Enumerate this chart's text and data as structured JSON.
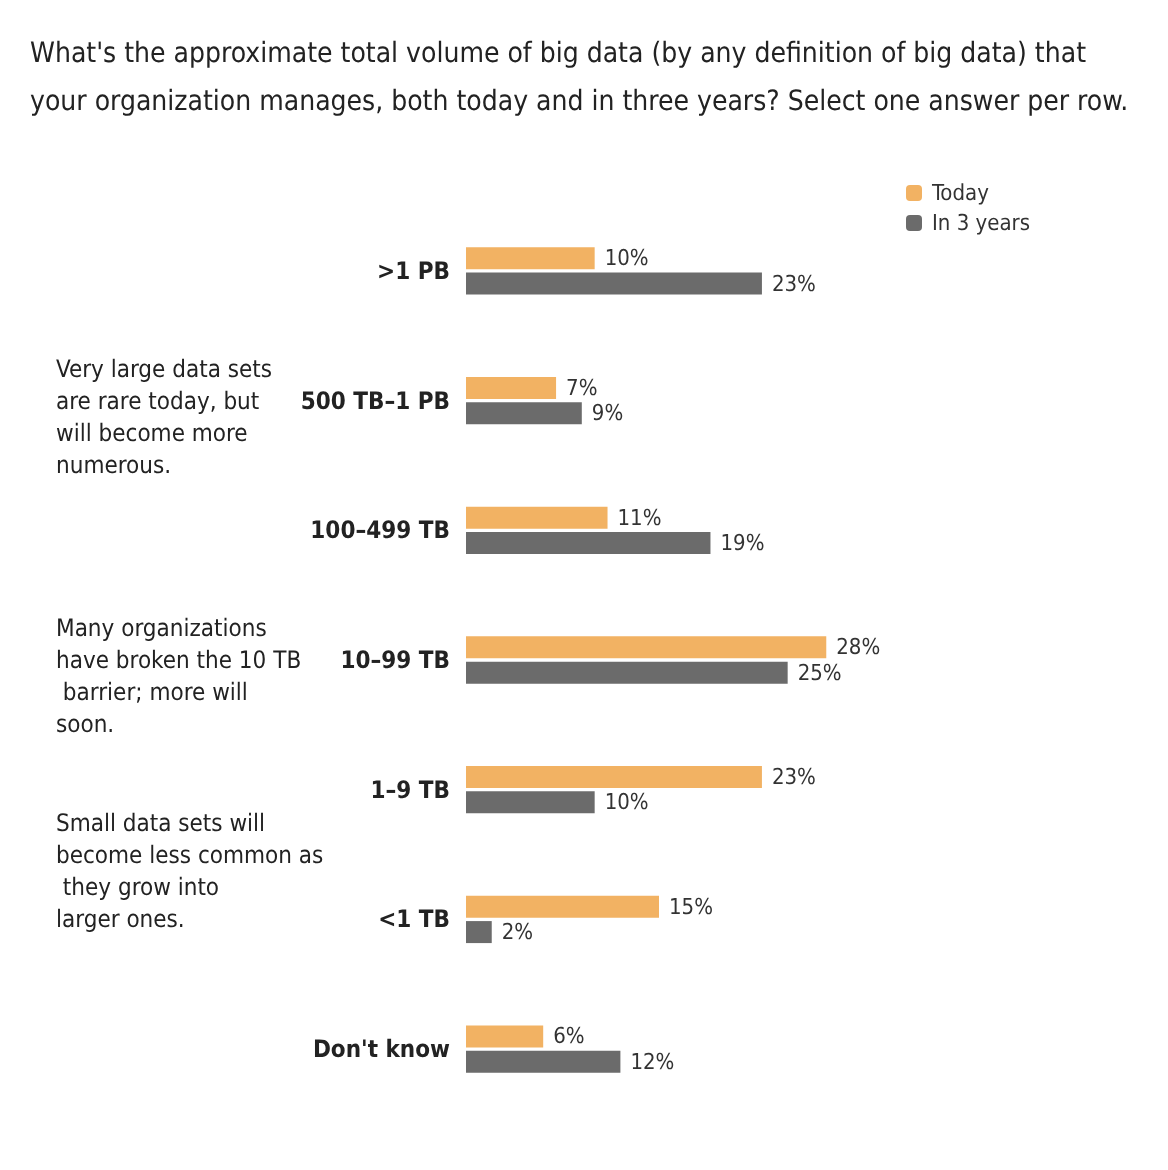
{
  "chart_data": {
    "type": "bar",
    "orientation": "horizontal",
    "title": "What's the approximate total volume of big data (by any definition of big data) that your organization manages, both today and in three years? Select one answer per row.",
    "categories": [
      ">1 PB",
      "500 TB–1 PB",
      "100–499 TB",
      "10–99 TB",
      "1–9 TB",
      "<1 TB",
      "Don't know"
    ],
    "series": [
      {
        "name": "Today",
        "color": "#f2b263",
        "values": [
          10,
          7,
          11,
          28,
          23,
          15,
          6
        ],
        "value_labels": [
          "10%",
          "7%",
          "11%",
          "28%",
          "23%",
          "15%",
          "6%"
        ]
      },
      {
        "name": "In 3 years",
        "color": "#6b6b6b",
        "values": [
          23,
          9,
          19,
          25,
          10,
          2,
          12
        ],
        "value_labels": [
          "23%",
          "9%",
          "19%",
          "25%",
          "10%",
          "2%",
          "12%"
        ]
      }
    ],
    "legend": "top right",
    "annotations": [
      "Very large data sets are rare today, but will become more numerous.",
      "Many organizations have broken the 10 TB barrier; more will soon.",
      "Small data sets will become less common as they grow into larger ones."
    ]
  }
}
